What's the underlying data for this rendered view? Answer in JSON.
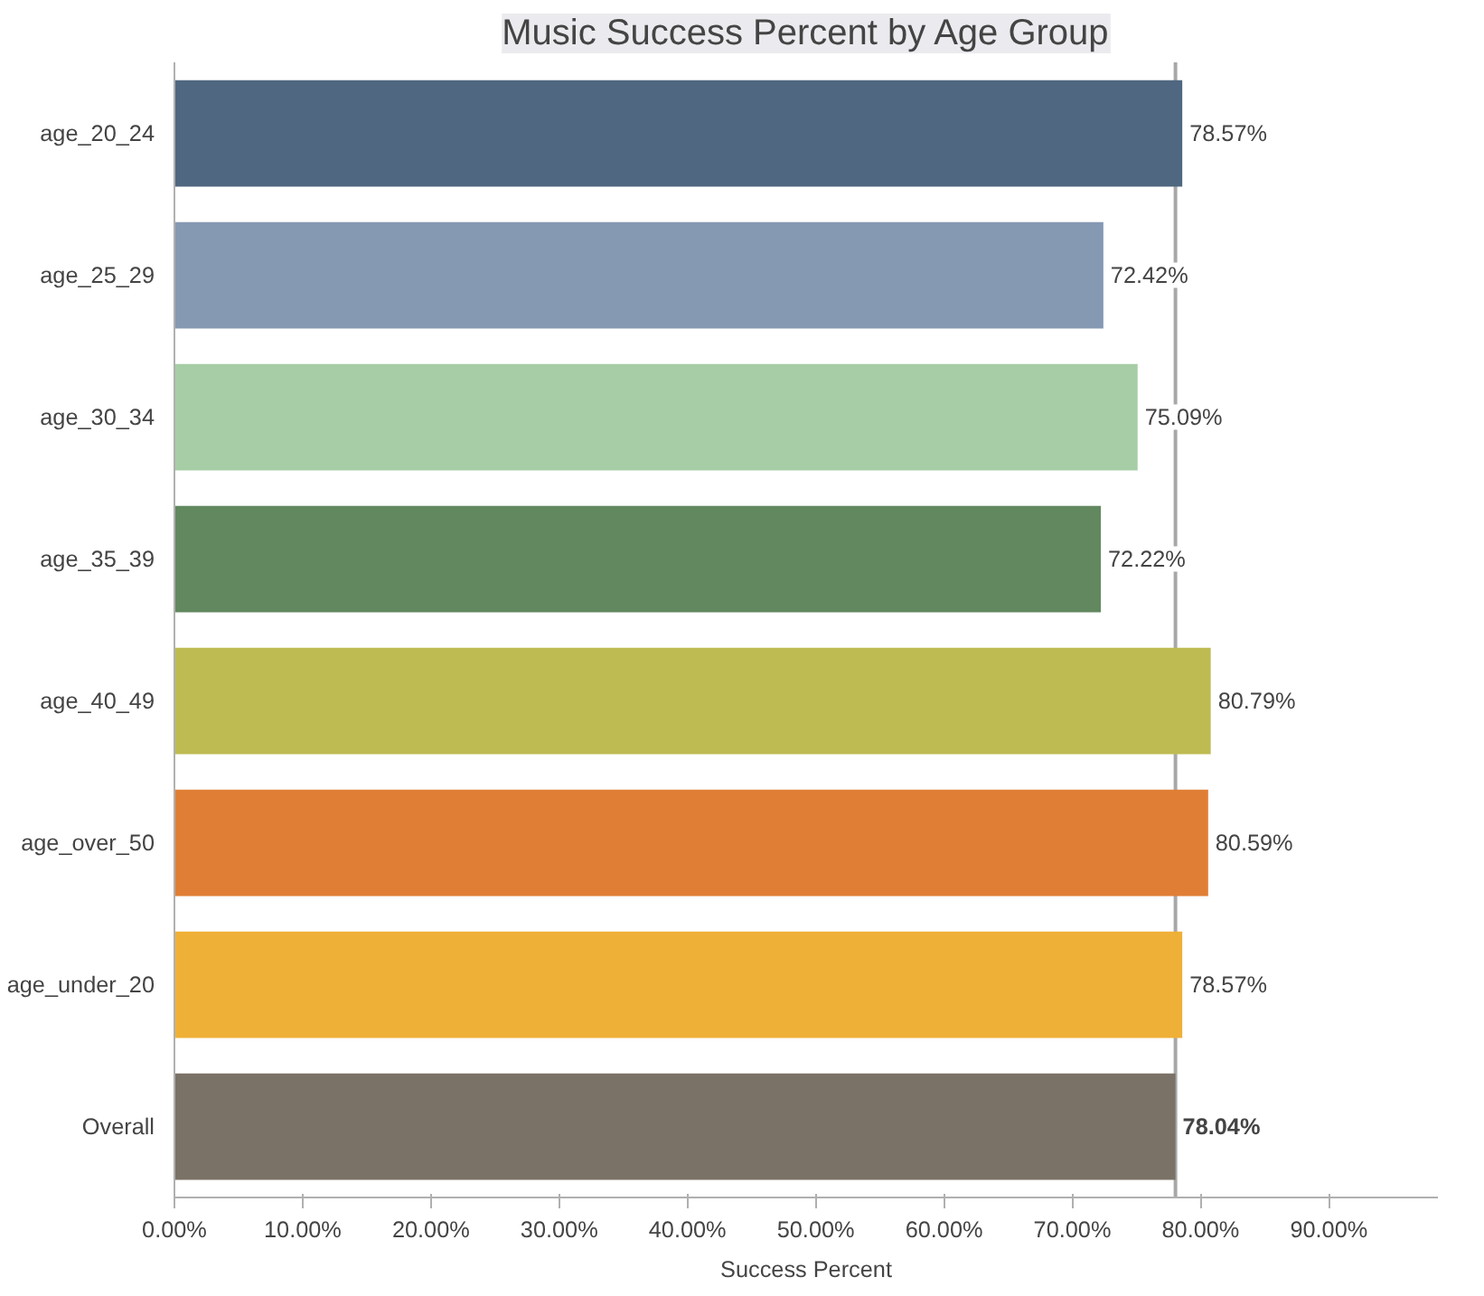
{
  "chart_data": {
    "type": "bar",
    "orientation": "horizontal",
    "title": "Music Success Percent by Age Group",
    "xlabel": "Success Percent",
    "categories": [
      "age_20_24",
      "age_25_29",
      "age_30_34",
      "age_35_39",
      "age_40_49",
      "age_over_50",
      "age_under_20",
      "Overall"
    ],
    "values": [
      78.57,
      72.42,
      75.09,
      72.22,
      80.79,
      80.59,
      78.57,
      78.04
    ],
    "colors": [
      "#4f6780",
      "#8699b3",
      "#a6cda5",
      "#62885f",
      "#bfbb53",
      "#e07e35",
      "#efb037",
      "#7a7266"
    ],
    "value_labels": [
      "78.57%",
      "72.42%",
      "75.09%",
      "72.22%",
      "80.79%",
      "80.59%",
      "78.57%",
      "78.04%"
    ],
    "xlim": [
      0,
      98.5
    ],
    "xticks": [
      {
        "value": 0,
        "label": "0.00%"
      },
      {
        "value": 10,
        "label": "10.00%"
      },
      {
        "value": 20,
        "label": "20.00%"
      },
      {
        "value": 30,
        "label": "30.00%"
      },
      {
        "value": 40,
        "label": "40.00%"
      },
      {
        "value": 50,
        "label": "50.00%"
      },
      {
        "value": 60,
        "label": "60.00%"
      },
      {
        "value": 70,
        "label": "70.00%"
      },
      {
        "value": 80,
        "label": "80.00%"
      },
      {
        "value": 90,
        "label": "90.00%"
      }
    ],
    "ref_lines": [
      {
        "axis": "x",
        "value": 78.04,
        "color": "#a8a8a8"
      }
    ],
    "grid": false
  }
}
